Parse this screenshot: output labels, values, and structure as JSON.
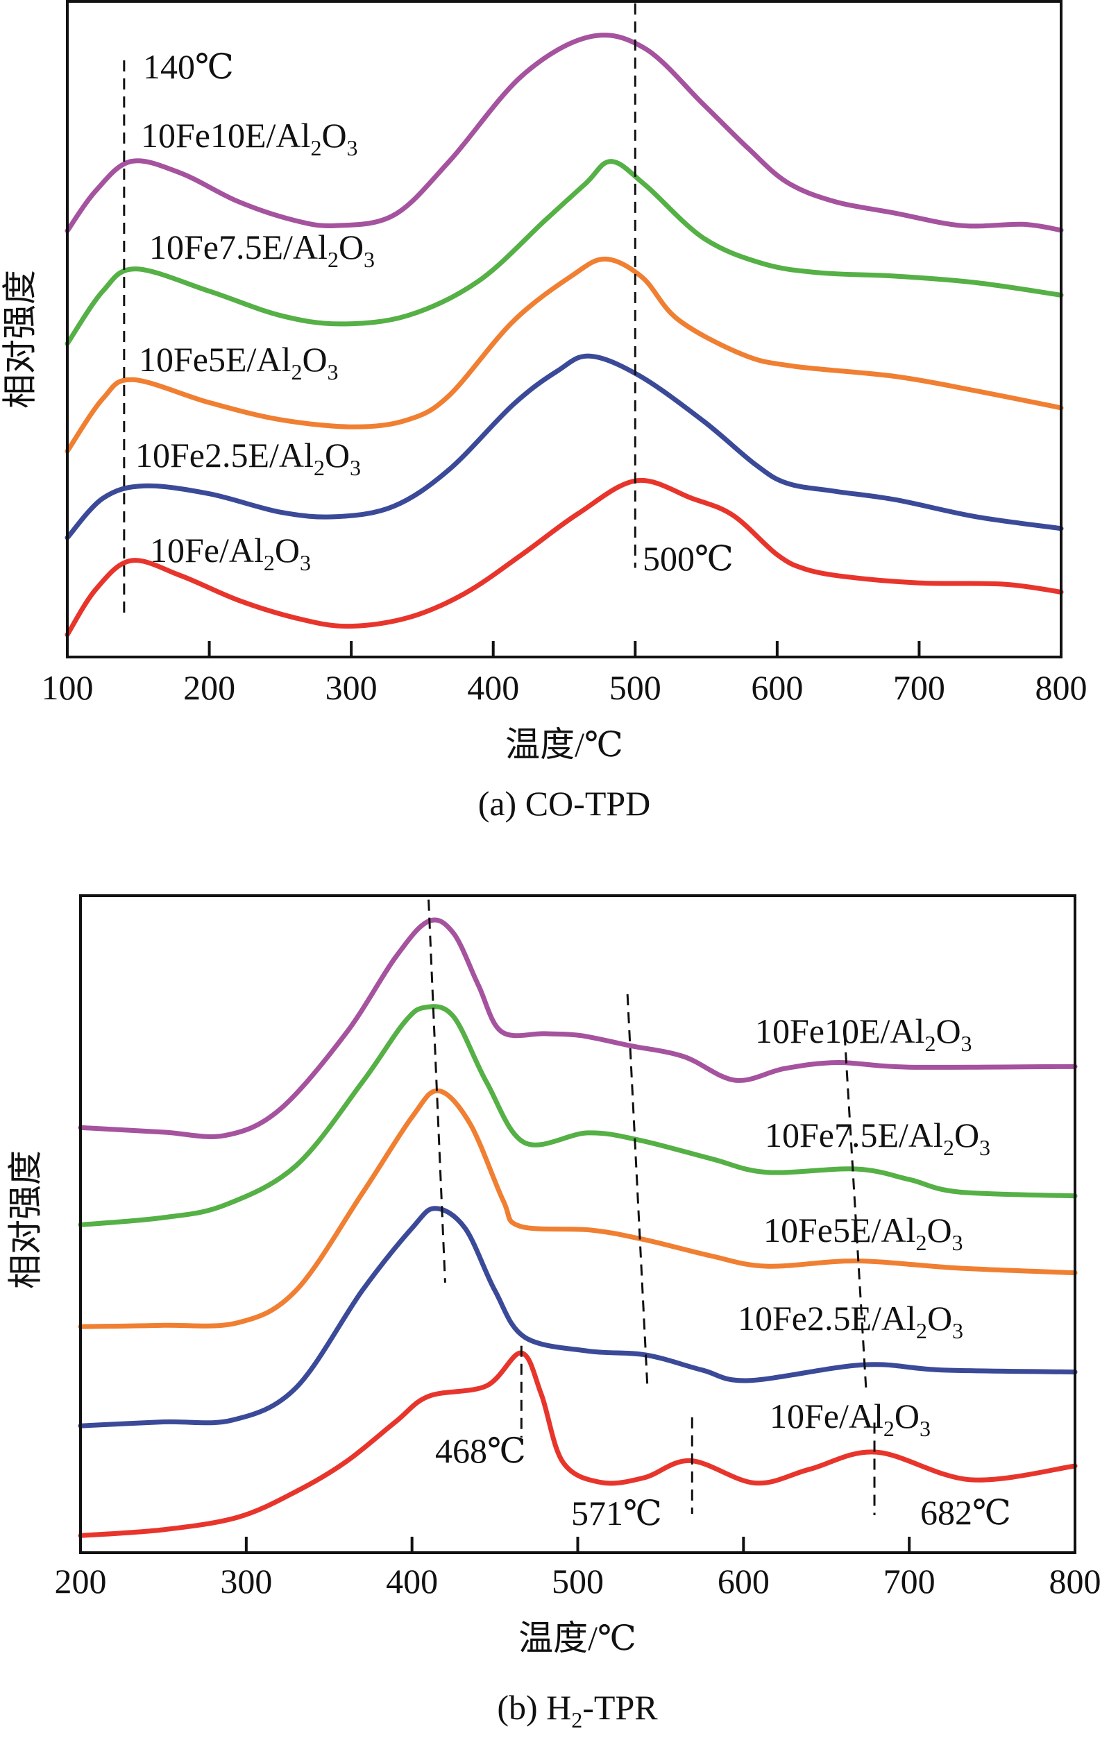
{
  "chart_data": [
    {
      "id": "a",
      "type": "line",
      "title": "(a) CO-TPD",
      "xlabel": "温度/℃",
      "ylabel": "相对强度",
      "xlim": [
        100,
        800
      ],
      "ylim": [
        0,
        100
      ],
      "y_units": "relative intensity (a.u., offset curves)",
      "xticks": [
        100,
        200,
        300,
        400,
        500,
        600,
        700,
        800
      ],
      "grid": false,
      "legend": "inline labels",
      "series": [
        {
          "name": "10Fe10E/Al2O3",
          "label_main": "10Fe10E/Al",
          "color": "#a5539e",
          "points": [
            [
              100,
              65.0
            ],
            [
              120,
              71.1
            ],
            [
              145,
              75.6
            ],
            [
              180,
              73.8
            ],
            [
              220,
              69.5
            ],
            [
              260,
              66.6
            ],
            [
              289,
              65.8
            ],
            [
              330,
              67.4
            ],
            [
              369,
              75.6
            ],
            [
              420,
              88.6
            ],
            [
              468,
              94.6
            ],
            [
              507,
              92.8
            ],
            [
              548,
              84.3
            ],
            [
              580,
              77.5
            ],
            [
              607,
              72.4
            ],
            [
              640,
              69.5
            ],
            [
              683,
              67.7
            ],
            [
              730,
              65.8
            ],
            [
              773,
              66.0
            ],
            [
              800,
              65.1
            ]
          ]
        },
        {
          "name": "10Fe7.5E/Al2O3",
          "label_main": "10Fe7.5E/Al",
          "color": "#55b046",
          "points": [
            [
              100,
              47.8
            ],
            [
              125,
              55.8
            ],
            [
              148,
              59.2
            ],
            [
              200,
              55.8
            ],
            [
              250,
              52.1
            ],
            [
              292,
              50.8
            ],
            [
              340,
              52.1
            ],
            [
              390,
              57.4
            ],
            [
              437,
              66.7
            ],
            [
              465,
              72.2
            ],
            [
              483,
              75.6
            ],
            [
              507,
              72.0
            ],
            [
              548,
              63.9
            ],
            [
              590,
              60.0
            ],
            [
              630,
              58.6
            ],
            [
              683,
              58.1
            ],
            [
              740,
              57.1
            ],
            [
              800,
              55.2
            ]
          ]
        },
        {
          "name": "10Fe5E/Al2O3",
          "label_main": "10Fe5E/Al",
          "color": "#f07f32",
          "points": [
            [
              100,
              31.4
            ],
            [
              125,
              39.4
            ],
            [
              146,
              42.3
            ],
            [
              200,
              38.8
            ],
            [
              250,
              36.2
            ],
            [
              302,
              35.1
            ],
            [
              340,
              36.2
            ],
            [
              369,
              39.9
            ],
            [
              414,
              51.2
            ],
            [
              455,
              58.1
            ],
            [
              479,
              60.7
            ],
            [
              505,
              57.9
            ],
            [
              530,
              51.5
            ],
            [
              575,
              46.2
            ],
            [
              610,
              44.4
            ],
            [
              683,
              42.8
            ],
            [
              740,
              40.6
            ],
            [
              800,
              38.0
            ]
          ]
        },
        {
          "name": "10Fe2.5E/Al2O3",
          "label_main": "10Fe2.5E/Al",
          "color": "#3b4a98",
          "points": [
            [
              100,
              18.2
            ],
            [
              125,
              24.2
            ],
            [
              154,
              26.1
            ],
            [
              200,
              24.9
            ],
            [
              250,
              22.1
            ],
            [
              289,
              21.4
            ],
            [
              330,
              23.0
            ],
            [
              369,
              28.6
            ],
            [
              414,
              38.5
            ],
            [
              445,
              43.6
            ],
            [
              468,
              45.9
            ],
            [
              503,
              42.9
            ],
            [
              548,
              36.0
            ],
            [
              585,
              29.3
            ],
            [
              607,
              26.5
            ],
            [
              640,
              25.3
            ],
            [
              683,
              24.0
            ],
            [
              740,
              21.4
            ],
            [
              800,
              19.6
            ]
          ]
        },
        {
          "name": "10Fe/Al2O3",
          "label_main": "10Fe/Al",
          "color": "#e8352c",
          "points": [
            [
              100,
              3.4
            ],
            [
              120,
              10.3
            ],
            [
              145,
              14.7
            ],
            [
              180,
              12.4
            ],
            [
              220,
              8.7
            ],
            [
              260,
              6.0
            ],
            [
              297,
              4.7
            ],
            [
              340,
              6.0
            ],
            [
              380,
              9.7
            ],
            [
              420,
              15.6
            ],
            [
              460,
              21.9
            ],
            [
              501,
              26.9
            ],
            [
              540,
              24.2
            ],
            [
              569,
              21.6
            ],
            [
              600,
              15.6
            ],
            [
              620,
              13.4
            ],
            [
              650,
              12.2
            ],
            [
              700,
              11.3
            ],
            [
              760,
              11.1
            ],
            [
              800,
              9.9
            ]
          ]
        }
      ],
      "annotations": [
        {
          "text": "140℃",
          "x": 140
        },
        {
          "text": "500℃",
          "x": 500
        }
      ],
      "reference_lines": [
        {
          "x1": 140,
          "y1": 91.0,
          "x2": 140,
          "y2": 6.3
        },
        {
          "x1": 500,
          "y1": 99.7,
          "x2": 500,
          "y2": 13.6
        }
      ]
    },
    {
      "id": "b",
      "type": "line",
      "title": "(b) H2-TPR",
      "title_main": "(b) H",
      "title_tail": "-TPR",
      "xlabel": "温度/℃",
      "ylabel": "相对强度",
      "xlim": [
        200,
        800
      ],
      "ylim": [
        0,
        100
      ],
      "y_units": "relative intensity (a.u., offset curves)",
      "xticks": [
        200,
        300,
        400,
        500,
        600,
        700,
        800
      ],
      "grid": false,
      "legend": "inline labels",
      "series": [
        {
          "name": "10Fe10E/Al2O3",
          "label_main": "10Fe10E/Al",
          "color": "#a5539e",
          "points": [
            [
              200,
              64.7
            ],
            [
              250,
              64.0
            ],
            [
              287,
              63.5
            ],
            [
              320,
              67.4
            ],
            [
              360,
              79.0
            ],
            [
              390,
              90.6
            ],
            [
              410,
              96.1
            ],
            [
              425,
              94.3
            ],
            [
              440,
              86.4
            ],
            [
              454,
              79.3
            ],
            [
              480,
              79.0
            ],
            [
              502,
              78.7
            ],
            [
              531,
              77.2
            ],
            [
              564,
              75.5
            ],
            [
              595,
              71.9
            ],
            [
              625,
              73.7
            ],
            [
              657,
              74.6
            ],
            [
              700,
              73.9
            ],
            [
              800,
              74.0
            ]
          ]
        },
        {
          "name": "10Fe7.5E/Al2O3",
          "label_main": "10Fe7.5E/Al",
          "color": "#55b046",
          "points": [
            [
              200,
              49.9
            ],
            [
              250,
              51.0
            ],
            [
              287,
              52.9
            ],
            [
              330,
              58.9
            ],
            [
              370,
              71.6
            ],
            [
              395,
              80.6
            ],
            [
              408,
              83.0
            ],
            [
              425,
              81.6
            ],
            [
              445,
              71.6
            ],
            [
              468,
              62.4
            ],
            [
              506,
              63.9
            ],
            [
              537,
              62.8
            ],
            [
              580,
              60.0
            ],
            [
              614,
              57.9
            ],
            [
              668,
              58.4
            ],
            [
              700,
              56.8
            ],
            [
              730,
              54.9
            ],
            [
              800,
              54.3
            ]
          ]
        },
        {
          "name": "10Fe5E/Al2O3",
          "label_main": "10Fe5E/Al",
          "color": "#f07f32",
          "points": [
            [
              200,
              34.4
            ],
            [
              250,
              34.6
            ],
            [
              295,
              35.0
            ],
            [
              330,
              39.9
            ],
            [
              370,
              54.7
            ],
            [
              400,
              66.3
            ],
            [
              416,
              70.3
            ],
            [
              435,
              65.3
            ],
            [
              455,
              53.6
            ],
            [
              465,
              49.7
            ],
            [
              508,
              49.1
            ],
            [
              541,
              47.6
            ],
            [
              580,
              45.2
            ],
            [
              614,
              43.6
            ],
            [
              668,
              44.4
            ],
            [
              730,
              43.3
            ],
            [
              800,
              42.6
            ]
          ]
        },
        {
          "name": "10Fe2.5E/Al2O3",
          "label_main": "10Fe2.5E/Al",
          "color": "#3b4a98",
          "points": [
            [
              200,
              19.3
            ],
            [
              250,
              19.9
            ],
            [
              292,
              20.2
            ],
            [
              330,
              25.1
            ],
            [
              370,
              39.9
            ],
            [
              400,
              49.4
            ],
            [
              414,
              52.4
            ],
            [
              432,
              49.4
            ],
            [
              450,
              39.9
            ],
            [
              468,
              32.8
            ],
            [
              506,
              30.7
            ],
            [
              541,
              30.1
            ],
            [
              575,
              27.8
            ],
            [
              603,
              26.2
            ],
            [
              672,
              28.6
            ],
            [
              720,
              27.8
            ],
            [
              800,
              27.5
            ]
          ]
        },
        {
          "name": "10Fe/Al2O3",
          "label_main": "10Fe/Al",
          "color": "#e8352c",
          "points": [
            [
              200,
              2.6
            ],
            [
              250,
              3.5
            ],
            [
              295,
              5.4
            ],
            [
              330,
              9.3
            ],
            [
              360,
              13.8
            ],
            [
              390,
              19.9
            ],
            [
              410,
              23.8
            ],
            [
              445,
              25.4
            ],
            [
              466,
              30.4
            ],
            [
              478,
              24.1
            ],
            [
              491,
              13.8
            ],
            [
              514,
              10.7
            ],
            [
              540,
              11.4
            ],
            [
              568,
              14.0
            ],
            [
              607,
              10.6
            ],
            [
              640,
              12.7
            ],
            [
              680,
              15.3
            ],
            [
              737,
              11.1
            ],
            [
              800,
              13.2
            ]
          ]
        }
      ],
      "annotations": [
        {
          "text": "468℃",
          "x": 468
        },
        {
          "text": "571℃",
          "x": 571
        },
        {
          "text": "682℃",
          "x": 682
        }
      ],
      "reference_lines": [
        {
          "x1": 410,
          "y1": 99.4,
          "x2": 420,
          "y2": 41.1
        },
        {
          "x1": 530,
          "y1": 85.0,
          "x2": 542,
          "y2": 25.4
        },
        {
          "x1": 661,
          "y1": 78.9,
          "x2": 674,
          "y2": 24.7
        },
        {
          "x1": 466,
          "y1": 31.5,
          "x2": 466,
          "y2": 17.5
        },
        {
          "x1": 569,
          "y1": 20.6,
          "x2": 569,
          "y2": 5.9
        },
        {
          "x1": 679,
          "y1": 19.8,
          "x2": 679,
          "y2": 5.7
        }
      ]
    }
  ]
}
